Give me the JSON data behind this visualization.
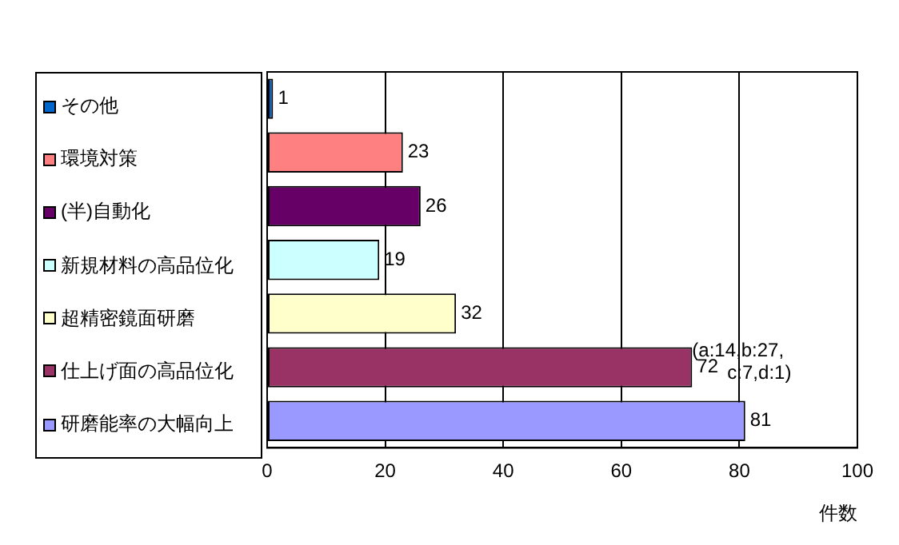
{
  "chart_data": {
    "type": "bar",
    "orientation": "horizontal",
    "categories": [
      "その他",
      "環境対策",
      "(半)自動化",
      "新規材料の高品位化",
      "超精密鏡面研磨",
      "仕上げ面の高品位化",
      "研磨能率の大幅向上"
    ],
    "values": [
      1,
      23,
      26,
      19,
      32,
      72,
      81
    ],
    "colors": [
      "#0066cc",
      "#ff8080",
      "#660066",
      "#ccffff",
      "#ffffcc",
      "#993366",
      "#9999ff"
    ],
    "xlim": [
      0,
      100
    ],
    "xticks": [
      0,
      20,
      40,
      60,
      80,
      100
    ],
    "xlabel": "件数",
    "grid": "x",
    "tick_labels": "x",
    "data_labels": true,
    "annotations": [
      {
        "text": "(a:14,b:27, c:7,d:1)",
        "x": 72,
        "y": "仕上げ面の高品位化"
      }
    ]
  }
}
